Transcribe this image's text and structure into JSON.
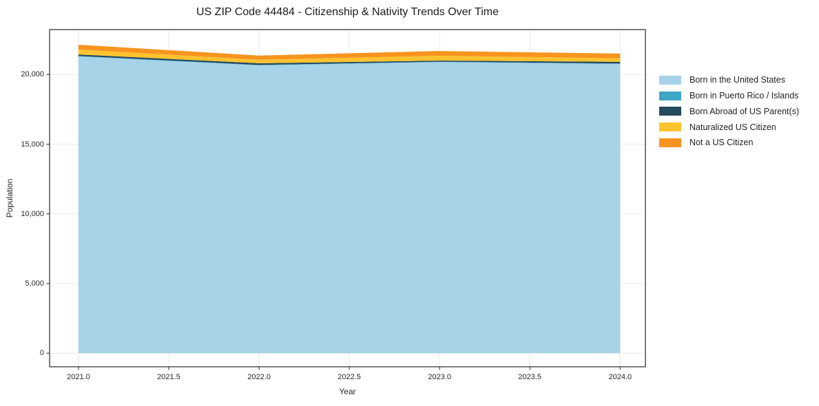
{
  "chart_data": {
    "type": "area",
    "stacked": true,
    "title": "US ZIP Code 44484 - Citizenship & Nativity Trends Over Time",
    "xlabel": "Year",
    "ylabel": "Population",
    "x": [
      2021,
      2022,
      2023,
      2024
    ],
    "series": [
      {
        "name": "Born in the United States",
        "color": "#a6d3e8",
        "values": [
          21300,
          20660,
          20900,
          20760
        ]
      },
      {
        "name": "Born in Puerto Rico / Islands",
        "color": "#3da5c6",
        "values": [
          30,
          30,
          20,
          30
        ]
      },
      {
        "name": "Born Abroad of US Parent(s)",
        "color": "#254a5e",
        "values": [
          110,
          120,
          80,
          120
        ]
      },
      {
        "name": "Naturalized US Citizen",
        "color": "#fdc32f",
        "values": [
          350,
          250,
          350,
          250
        ]
      },
      {
        "name": "Not a US Citizen",
        "color": "#f7941f",
        "values": [
          350,
          300,
          340,
          340
        ]
      }
    ],
    "xlim": [
      2020.84,
      2024.14
    ],
    "ylim": [
      -975,
      23225
    ],
    "xticks": {
      "values": [
        2021.0,
        2021.5,
        2022.0,
        2022.5,
        2023.0,
        2023.5,
        2024.0
      ],
      "labels": [
        "2021.0",
        "2021.5",
        "2022.0",
        "2022.5",
        "2023.0",
        "2023.5",
        "2024.0"
      ]
    },
    "yticks": {
      "values": [
        0,
        5000,
        10000,
        15000,
        20000
      ],
      "labels": [
        "0",
        "5,000",
        "10,000",
        "15,000",
        "20,000"
      ]
    },
    "grid": true,
    "grid_color": "#e9e9e9",
    "legend_position": "right-outside",
    "colors": {
      "spine": "#262626",
      "tick": "#262626",
      "text": "#262626",
      "title": "#1a1a1a",
      "background": "#ffffff"
    }
  }
}
